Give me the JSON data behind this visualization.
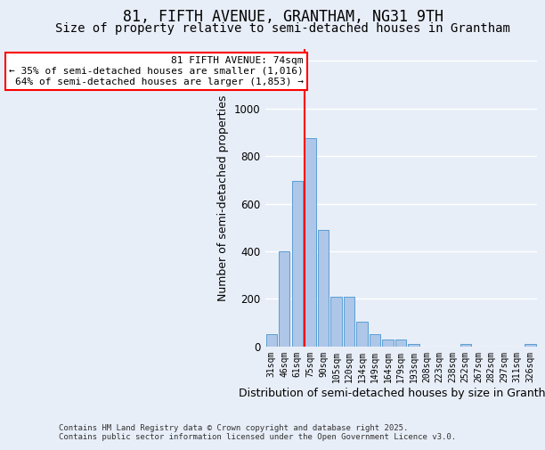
{
  "title": "81, FIFTH AVENUE, GRANTHAM, NG31 9TH",
  "subtitle": "Size of property relative to semi-detached houses in Grantham",
  "xlabel": "Distribution of semi-detached houses by size in Grantham",
  "ylabel": "Number of semi-detached properties",
  "categories": [
    "31sqm",
    "46sqm",
    "61sqm",
    "75sqm",
    "90sqm",
    "105sqm",
    "120sqm",
    "134sqm",
    "149sqm",
    "164sqm",
    "179sqm",
    "193sqm",
    "208sqm",
    "223sqm",
    "238sqm",
    "252sqm",
    "267sqm",
    "282sqm",
    "297sqm",
    "311sqm",
    "326sqm"
  ],
  "values": [
    50,
    400,
    695,
    875,
    490,
    210,
    210,
    105,
    50,
    30,
    30,
    10,
    0,
    0,
    0,
    10,
    0,
    0,
    0,
    0,
    10
  ],
  "bar_color": "#aec6e8",
  "bar_edge_color": "#5a9fd4",
  "vline_color": "red",
  "annotation_line1": "81 FIFTH AVENUE: 74sqm",
  "annotation_line2": "← 35% of semi-detached houses are smaller (1,016)",
  "annotation_line3": "64% of semi-detached houses are larger (1,853) →",
  "ylim": [
    0,
    1250
  ],
  "yticks": [
    0,
    200,
    400,
    600,
    800,
    1000,
    1200
  ],
  "background_color": "#e8eef8",
  "grid_color": "#ffffff",
  "footer": "Contains HM Land Registry data © Crown copyright and database right 2025.\nContains public sector information licensed under the Open Government Licence v3.0.",
  "title_fontsize": 12,
  "subtitle_fontsize": 10,
  "annotation_fontsize": 8,
  "footer_fontsize": 6.5,
  "bar_width": 0.85
}
